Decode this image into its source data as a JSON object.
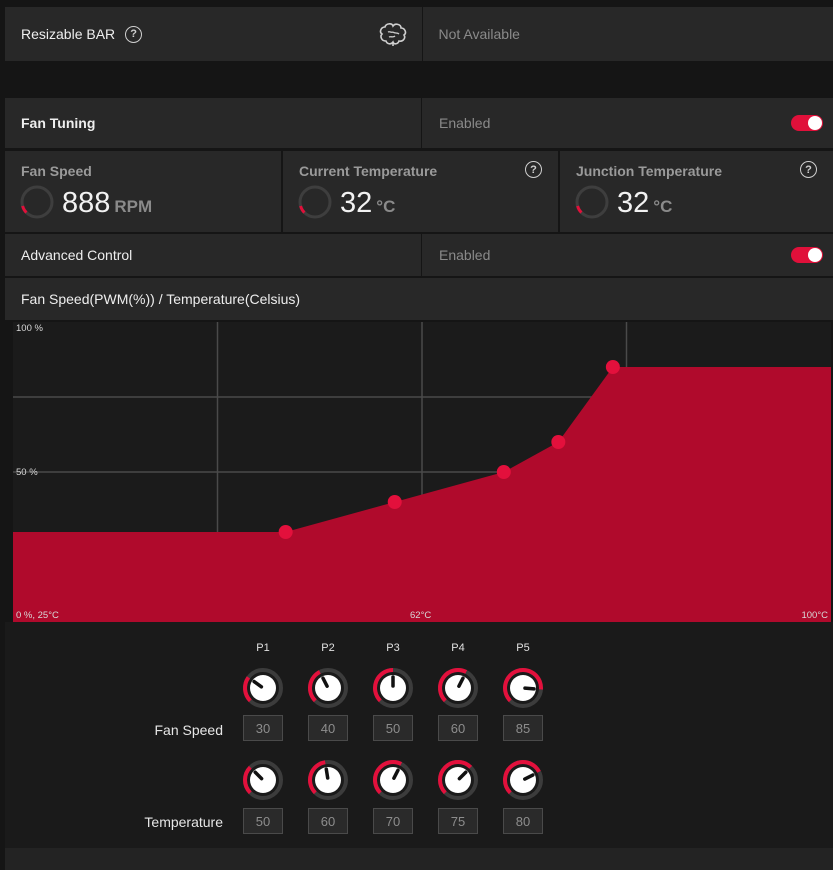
{
  "resizable_bar": {
    "label": "Resizable BAR",
    "help_icon": "question-circle-icon",
    "brain_icon": "brain-icon",
    "status": "Not Available"
  },
  "fan_tuning": {
    "label": "Fan Tuning",
    "status": "Enabled",
    "enabled": true
  },
  "metrics": [
    {
      "title": "Fan Speed",
      "value": "888",
      "unit": "RPM",
      "has_help": false
    },
    {
      "title": "Current Temperature",
      "value": "32",
      "unit": "°C",
      "has_help": true
    },
    {
      "title": "Junction Temperature",
      "value": "32",
      "unit": "°C",
      "has_help": true
    }
  ],
  "advanced_control": {
    "label": "Advanced Control",
    "status": "Enabled",
    "enabled": true
  },
  "chart_header": "Fan Speed(PWM(%)) / Temperature(Celsius)",
  "chart_data": {
    "type": "area",
    "x": [
      25,
      50,
      60,
      70,
      75,
      80,
      100
    ],
    "y": [
      30,
      30,
      40,
      50,
      60,
      85,
      85
    ],
    "points": [
      {
        "name": "P1",
        "temp": 50,
        "speed": 30
      },
      {
        "name": "P2",
        "temp": 60,
        "speed": 40
      },
      {
        "name": "P3",
        "temp": 70,
        "speed": 50
      },
      {
        "name": "P4",
        "temp": 75,
        "speed": 60
      },
      {
        "name": "P5",
        "temp": 80,
        "speed": 85
      }
    ],
    "y_labels": {
      "top": "100 %",
      "mid": "50 %",
      "bottom": "0 %, 25°C"
    },
    "x_labels": {
      "mid": "62°C",
      "right": "100°C"
    },
    "xlim": [
      25,
      100
    ],
    "ylim": [
      0,
      100
    ],
    "grid": true,
    "fill_color": "#b00a2c",
    "point_color": "#e3103c"
  },
  "controls": {
    "headers": [
      "P1",
      "P2",
      "P3",
      "P4",
      "P5"
    ],
    "fan_speed_label": "Fan Speed",
    "temperature_label": "Temperature",
    "fan_speed_values": [
      "30",
      "40",
      "50",
      "60",
      "85"
    ],
    "temperature_values": [
      "50",
      "60",
      "70",
      "75",
      "80"
    ]
  },
  "colors": {
    "accent": "#e0103a",
    "panel": "#282828",
    "background": "#151515"
  }
}
